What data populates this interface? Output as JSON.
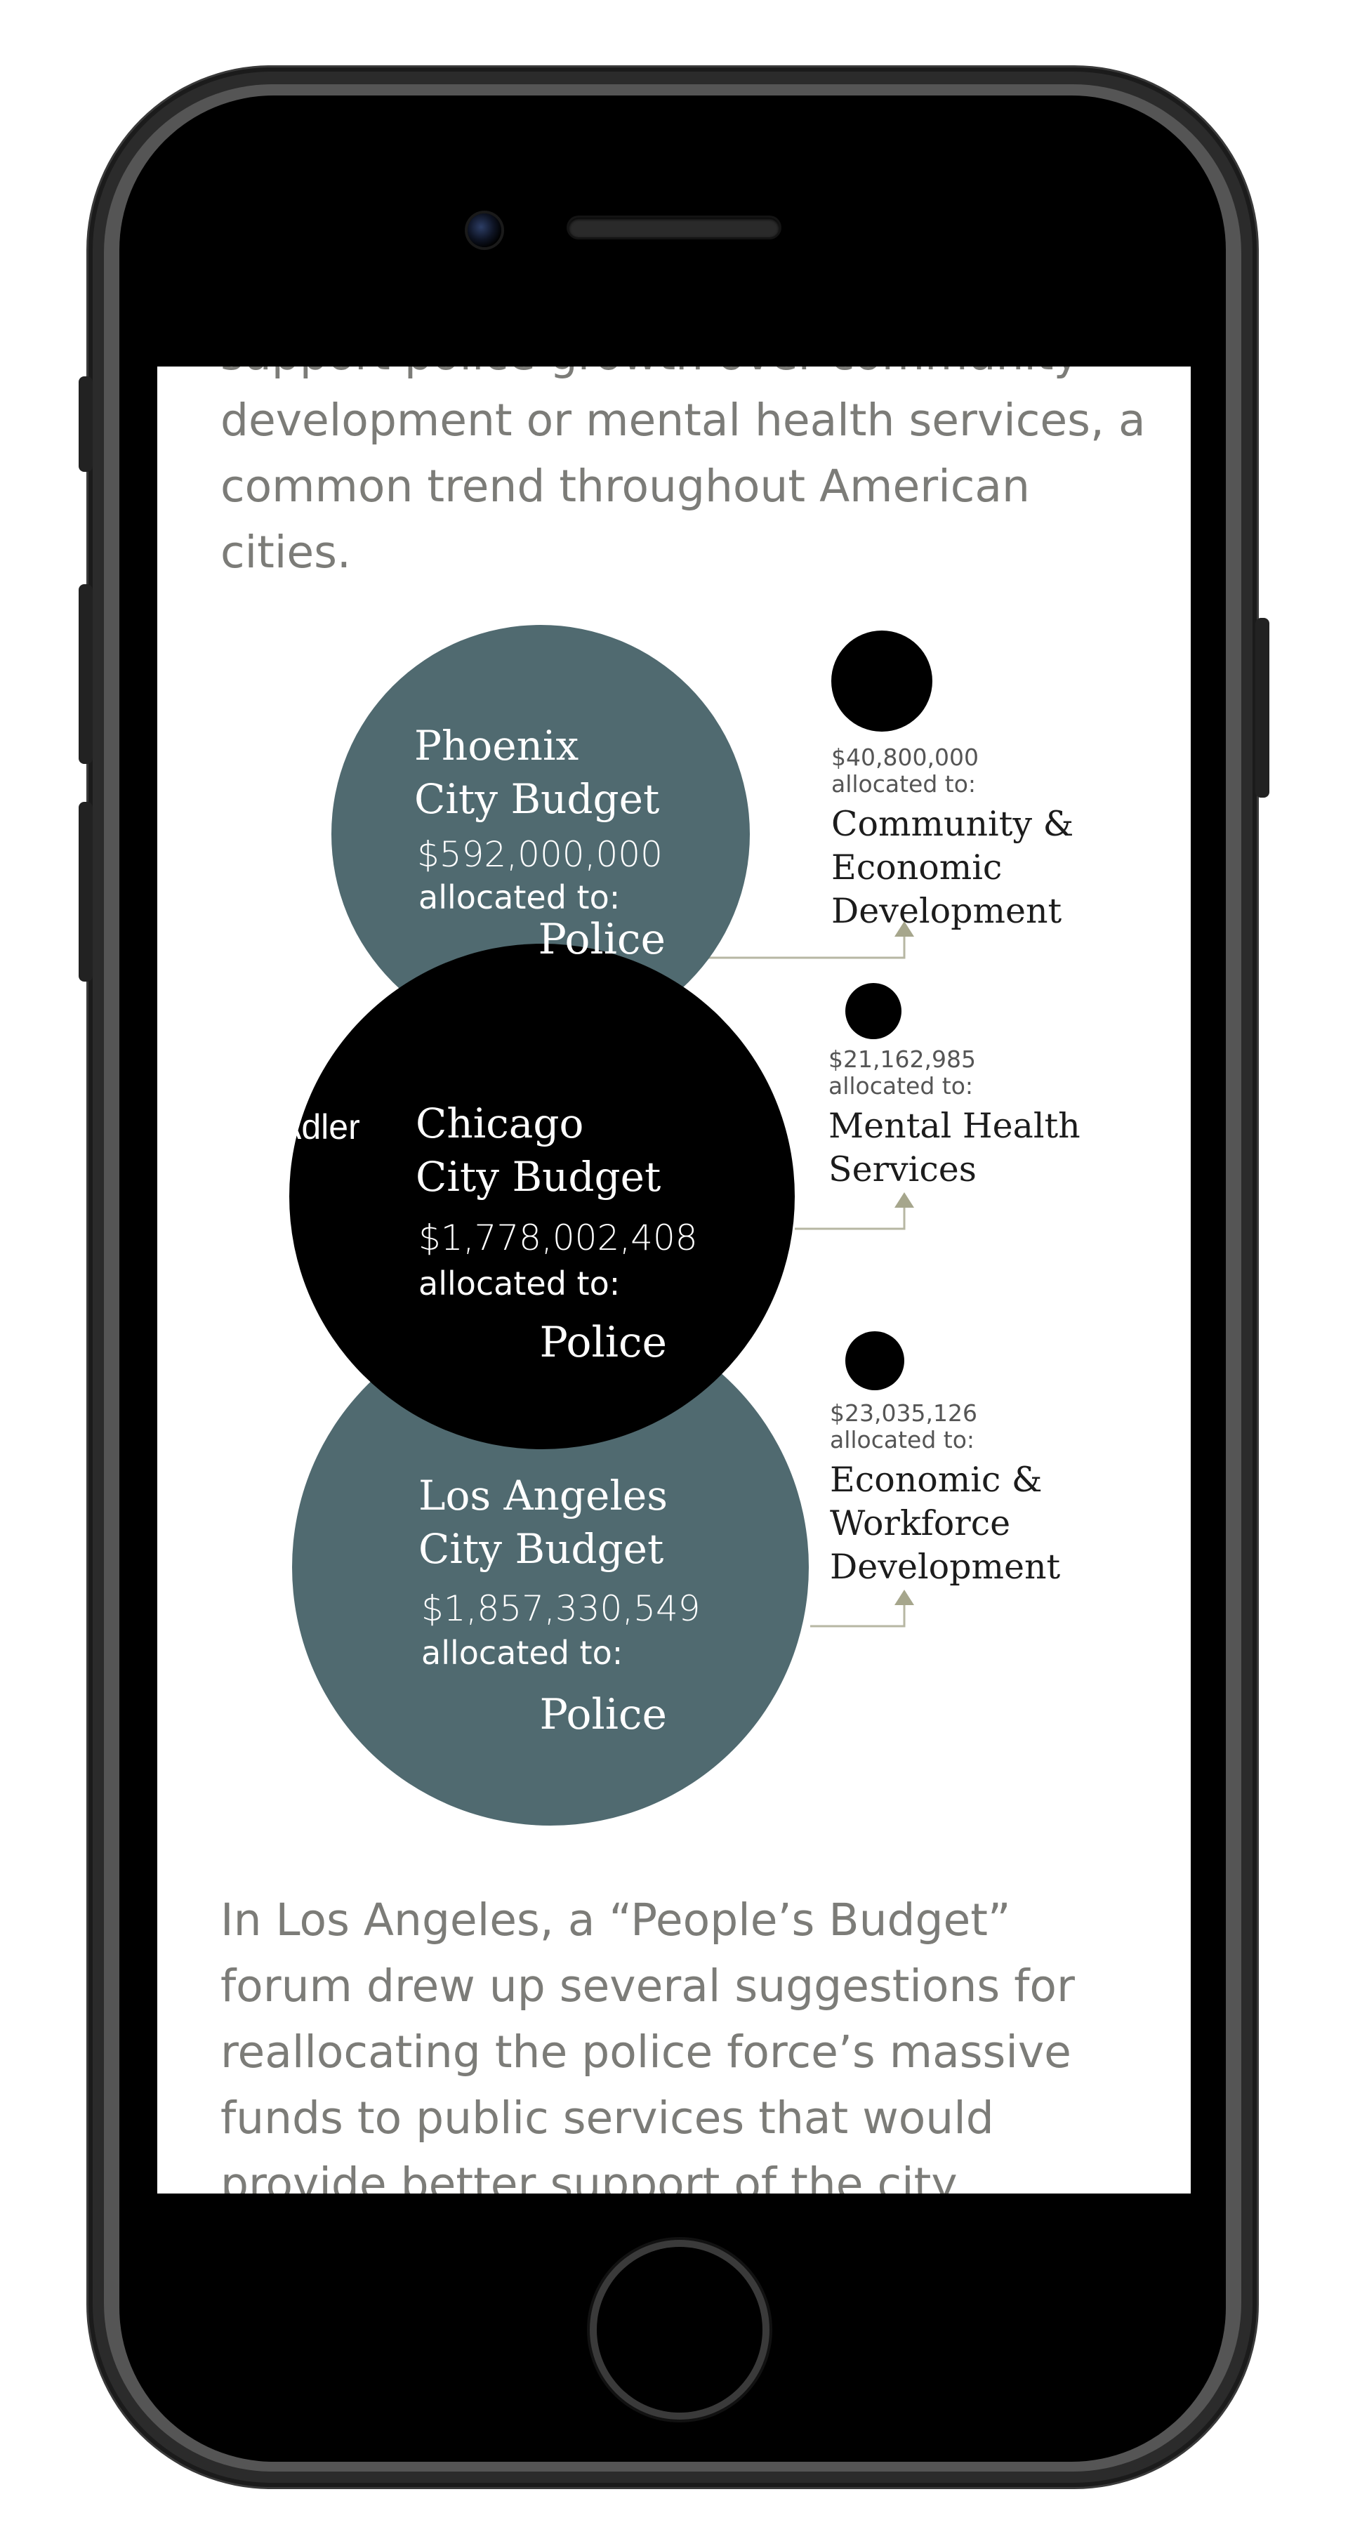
{
  "article": {
    "paragraph_top": "support police growth over community development or mental health services, a common trend throughout American cities.",
    "paragraph_bottom": "In Los Angeles, a “People’s Budget” forum drew up several suggestions for reallocating the police force’s massive funds to public services that would provide better support of the city."
  },
  "overlay_label": "Adler",
  "chart_data": {
    "type": "bubble",
    "colors": {
      "phoenix": "#506a70",
      "chicago": "#000000",
      "los_angeles": "#506a70",
      "category_bubble": "#000000",
      "connector": "#b7b7a3"
    },
    "cities": [
      {
        "name_line1": "Phoenix",
        "name_line2": "City Budget",
        "amount_text": "$592,000,000",
        "allocated_text": "allocated to:",
        "target": "Police",
        "value": 592000000,
        "category": {
          "amount_text": "$40,800,000",
          "allocated_text": "allocated to:",
          "name_lines": [
            "Community &",
            "Economic",
            "Development"
          ],
          "value": 40800000
        }
      },
      {
        "name_line1": "Chicago",
        "name_line2": "City Budget",
        "amount_text": "$1,778,002,408",
        "allocated_text": "allocated to:",
        "target": "Police",
        "value": 1778002408,
        "category": {
          "amount_text": "$21,162,985",
          "allocated_text": "allocated to:",
          "name_lines": [
            "Mental Health",
            "Services"
          ],
          "value": 21162985
        }
      },
      {
        "name_line1": "Los Angeles",
        "name_line2": "City Budget",
        "amount_text": "$1,857,330,549",
        "allocated_text": "allocated to:",
        "target": "Police",
        "value": 1857330549,
        "category": {
          "amount_text": "$23,035,126",
          "allocated_text": "allocated to:",
          "name_lines": [
            "Economic &",
            "Workforce",
            "Development"
          ],
          "value": 23035126
        }
      }
    ]
  }
}
